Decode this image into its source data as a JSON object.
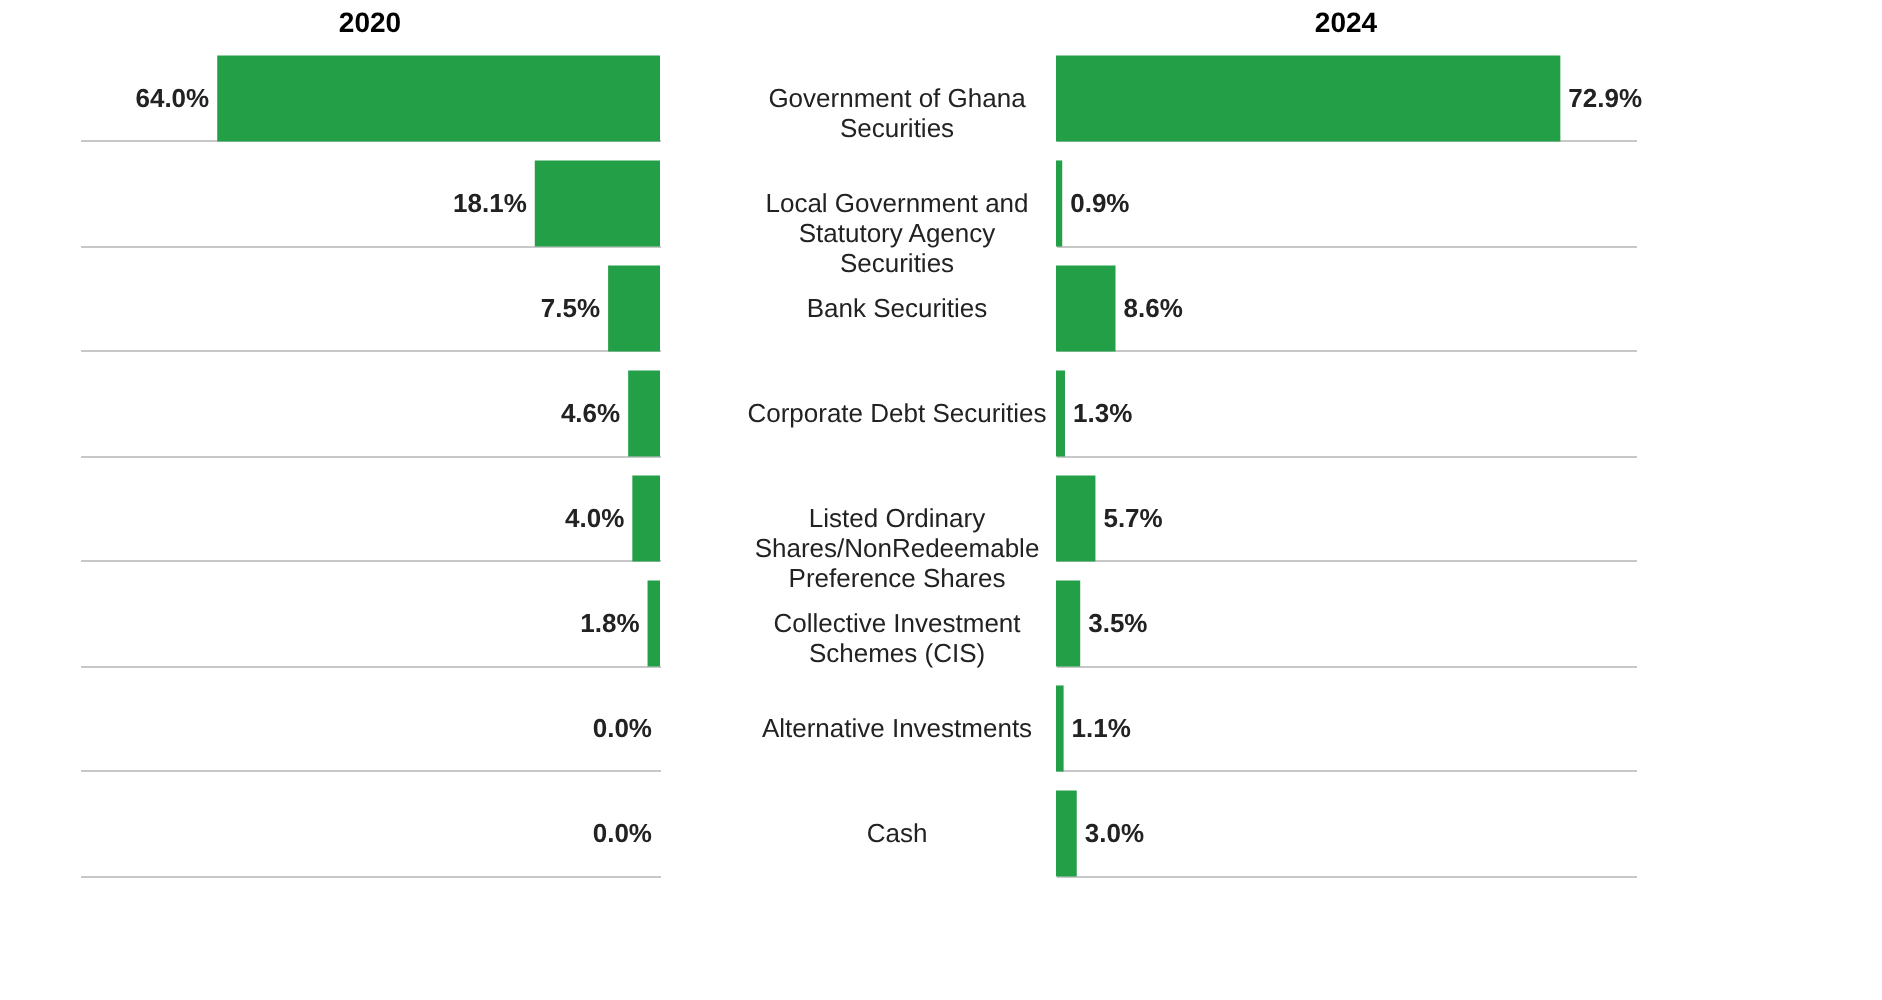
{
  "chart_data": [
    {
      "type": "bar",
      "orientation": "horizontal",
      "title": "2020",
      "categories": [
        "Government of Ghana Securities",
        "Local Government and Statutory Agency Securities",
        "Bank Securities",
        "Corporate Debt Securities",
        "Listed Ordinary Shares/NonRedeemable Preference Shares",
        "Collective Investment Schemes (CIS)",
        "Alternative Investments",
        "Cash"
      ],
      "values": [
        64.0,
        18.1,
        7.5,
        4.6,
        4.0,
        1.8,
        0.0,
        0.0
      ],
      "value_labels": [
        "64.0%",
        "18.1%",
        "7.5%",
        "4.6%",
        "4.0%",
        "1.8%",
        "0.0%",
        "0.0%"
      ],
      "color": "#239f48",
      "grid": "y",
      "tick_labels": "y"
    },
    {
      "type": "bar",
      "orientation": "horizontal",
      "title": "2024",
      "values": [
        72.9,
        0.9,
        8.6,
        1.3,
        5.7,
        3.5,
        1.1,
        3.0
      ],
      "value_labels": [
        "72.9%",
        "0.9%",
        "8.6%",
        "1.3%",
        "5.7%",
        "3.5%",
        "1.1%",
        "3.0%"
      ],
      "color": "#239f48",
      "grid": "y",
      "tick_labels": false
    }
  ]
}
